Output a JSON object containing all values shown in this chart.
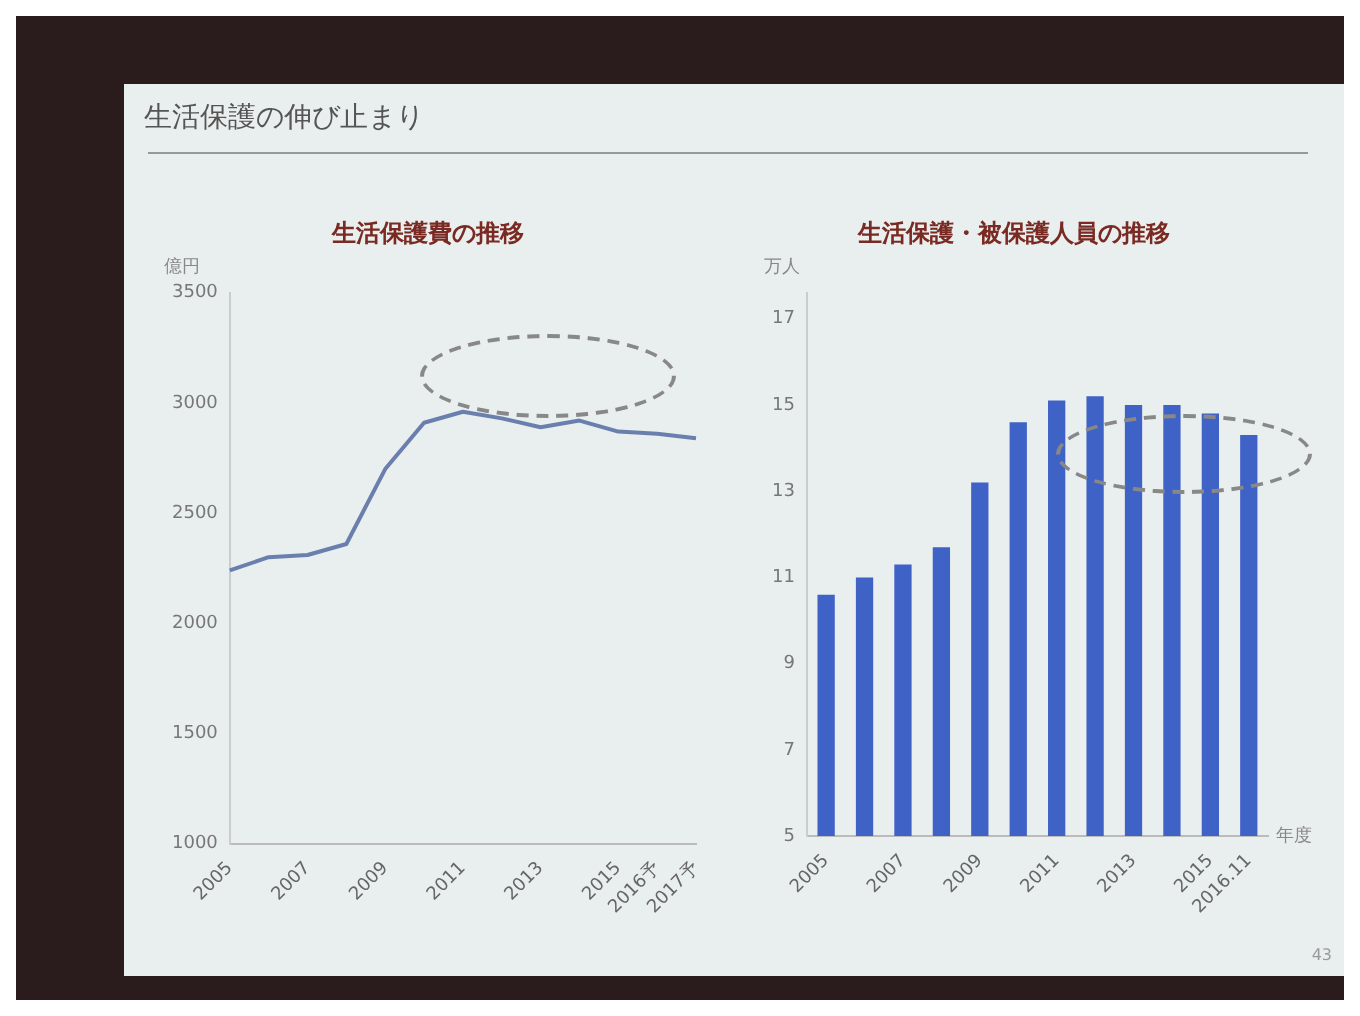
{
  "chart_data": [
    {
      "type": "line",
      "title": "生活保護費の推移",
      "ylabel": "億円",
      "annotations": [
        "生活保護の伸び止まり"
      ],
      "categories": [
        "2005",
        null,
        "2007",
        null,
        "2009",
        null,
        "2011",
        null,
        "2013",
        null,
        "2015",
        "2016予",
        "2017予"
      ],
      "series": [
        {
          "color": "#6b7fae",
          "values": [
            2240,
            2300,
            2310,
            2360,
            2700,
            2910,
            2960,
            2930,
            2890,
            2920,
            2870,
            2860,
            2840
          ]
        }
      ],
      "ylim": [
        1000,
        3500
      ],
      "yticks": [
        1000,
        1500,
        2000,
        2500,
        3000,
        3500
      ],
      "grid": false,
      "legend": false,
      "marker": "none",
      "line_style": "solid"
    },
    {
      "type": "bar",
      "title": "生活保護・被保護人員の推移",
      "ylabel": "万人",
      "xlabel": "年度",
      "annotations": [
        "43"
      ],
      "categories": [
        "2005",
        null,
        "2007",
        null,
        "2009",
        null,
        "2011",
        null,
        "2013",
        null,
        "2015",
        "2016.11"
      ],
      "series": [
        {
          "color": "#3f62c6",
          "values": [
            10.6,
            11.0,
            11.3,
            11.7,
            13.2,
            14.6,
            15.1,
            15.2,
            15.0,
            15.0,
            14.8,
            14.3
          ]
        }
      ],
      "ylim": [
        5,
        17.6
      ],
      "yticks": [
        5,
        7,
        9,
        11,
        13,
        15,
        17
      ],
      "grid": false,
      "legend": false
    }
  ]
}
